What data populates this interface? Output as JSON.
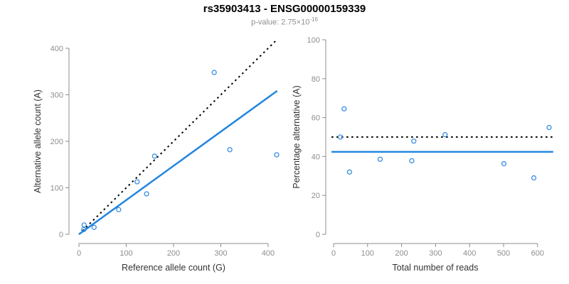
{
  "header": {
    "title": "rs35903413 - ENSG00000159339",
    "subtitle_base": "p-value: 2.75×10",
    "subtitle_exponent": "-16"
  },
  "colors": {
    "accent_blue": "#2385e0",
    "point_blue": "#3a8fe2",
    "reference_black": "#000000",
    "axis_gray": "#8e8e8e",
    "tick_label_gray": "#8e8e8e",
    "axis_title_dark": "#333333",
    "title_black": "#000000",
    "subtitle_gray": "#8e8e8e",
    "background": "#ffffff"
  },
  "chart_data": [
    {
      "type": "scatter",
      "title": "",
      "xlabel": "Reference allele count (G)",
      "ylabel": "Alternative allele count (A)",
      "xlim": [
        0,
        420
      ],
      "ylim": [
        0,
        420
      ],
      "xticks": [
        0,
        100,
        200,
        300,
        400
      ],
      "yticks": [
        0,
        100,
        200,
        300,
        400
      ],
      "grid": false,
      "legend": "none",
      "points": [
        [
          11,
          20
        ],
        [
          10,
          10
        ],
        [
          32,
          15
        ],
        [
          84,
          53
        ],
        [
          123,
          113
        ],
        [
          143,
          87
        ],
        [
          160,
          168
        ],
        [
          286,
          348
        ],
        [
          319,
          182
        ],
        [
          418,
          171
        ]
      ],
      "lines": [
        {
          "name": "identity-reference-line",
          "kind": "abline",
          "slope": 1,
          "intercept": 0,
          "style": "dashed",
          "color": "#000000"
        },
        {
          "name": "regression-line",
          "kind": "abline",
          "slope": 0.736,
          "intercept": 0,
          "style": "solid",
          "color": "#2385e0"
        }
      ]
    },
    {
      "type": "scatter",
      "title": "",
      "xlabel": "Total number of reads",
      "ylabel": "Percentage alternative (A)",
      "xlim": [
        0,
        650
      ],
      "ylim": [
        0,
        100
      ],
      "xticks": [
        0,
        100,
        200,
        300,
        400,
        500,
        600
      ],
      "yticks": [
        0,
        20,
        40,
        60,
        80,
        100
      ],
      "grid": false,
      "legend": "none",
      "points": [
        [
          31,
          64.5
        ],
        [
          20,
          50
        ],
        [
          47,
          32
        ],
        [
          137,
          38.6
        ],
        [
          236,
          47.9
        ],
        [
          230,
          37.8
        ],
        [
          328,
          51.2
        ],
        [
          634,
          54.9
        ],
        [
          501,
          36.3
        ],
        [
          589,
          29
        ]
      ],
      "lines": [
        {
          "name": "fifty-percent-line",
          "kind": "hline",
          "y": 50,
          "style": "dashed",
          "color": "#000000"
        },
        {
          "name": "mean-percentage-line",
          "kind": "hline",
          "y": 42.4,
          "style": "solid",
          "color": "#2385e0"
        }
      ]
    }
  ]
}
